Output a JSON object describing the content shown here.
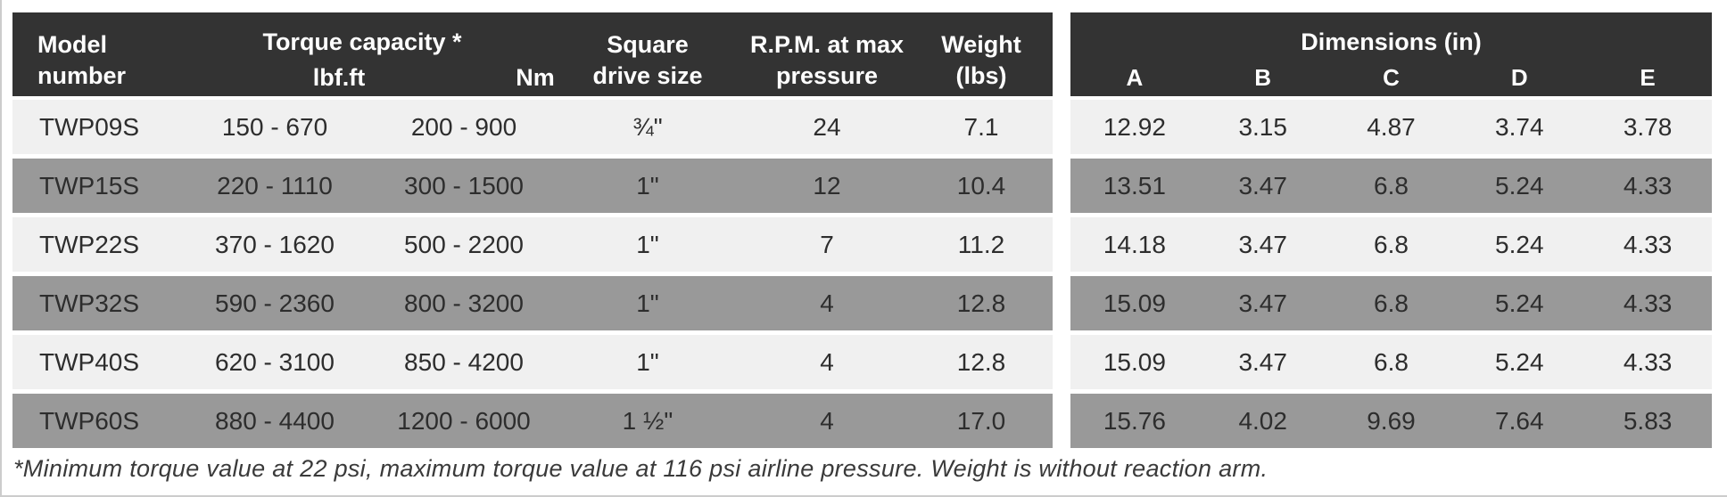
{
  "colors": {
    "header_bg": "#333333",
    "header_text": "#ffffff",
    "row_light": "#f0f0f0",
    "row_gray": "#999999",
    "cell_text": "#2d2d2d",
    "note_text": "#3a3a3a",
    "page_border": "#cccccc"
  },
  "left_table": {
    "headers": {
      "model": "Model\nnumber",
      "torque_group": "Torque capacity *",
      "lbfft": "lbf.ft",
      "nm": "Nm",
      "drive": "Square\ndrive size",
      "rpm": "R.P.M. at max\npressure",
      "weight": "Weight\n(lbs)"
    },
    "rows": [
      {
        "model": "TWP09S",
        "lbfft": "150 - 670",
        "nm": "200 - 900",
        "drive": "¾\"",
        "rpm": "24",
        "weight": "7.1"
      },
      {
        "model": "TWP15S",
        "lbfft": "220 - 1110",
        "nm": "300 - 1500",
        "drive": "1\"",
        "rpm": "12",
        "weight": "10.4"
      },
      {
        "model": "TWP22S",
        "lbfft": "370 - 1620",
        "nm": "500 - 2200",
        "drive": "1\"",
        "rpm": "7",
        "weight": "11.2"
      },
      {
        "model": "TWP32S",
        "lbfft": "590 - 2360",
        "nm": "800 - 3200",
        "drive": "1\"",
        "rpm": "4",
        "weight": "12.8"
      },
      {
        "model": "TWP40S",
        "lbfft": "620 - 3100",
        "nm": "850 - 4200",
        "drive": "1\"",
        "rpm": "4",
        "weight": "12.8"
      },
      {
        "model": "TWP60S",
        "lbfft": "880 - 4400",
        "nm": "1200 - 6000",
        "drive": "1 ½\"",
        "rpm": "4",
        "weight": "17.0"
      }
    ]
  },
  "right_table": {
    "group_header": "Dimensions (in)",
    "columns": [
      "A",
      "B",
      "C",
      "D",
      "E"
    ],
    "rows": [
      [
        "12.92",
        "3.15",
        "4.87",
        "3.74",
        "3.78"
      ],
      [
        "13.51",
        "3.47",
        "6.8",
        "5.24",
        "4.33"
      ],
      [
        "14.18",
        "3.47",
        "6.8",
        "5.24",
        "4.33"
      ],
      [
        "15.09",
        "3.47",
        "6.8",
        "5.24",
        "4.33"
      ],
      [
        "15.09",
        "3.47",
        "6.8",
        "5.24",
        "4.33"
      ],
      [
        "15.76",
        "4.02",
        "9.69",
        "7.64",
        "5.83"
      ]
    ]
  },
  "footnote": "*Minimum torque value at 22 psi, maximum torque value at 116 psi airline pressure. Weight is without reaction arm."
}
